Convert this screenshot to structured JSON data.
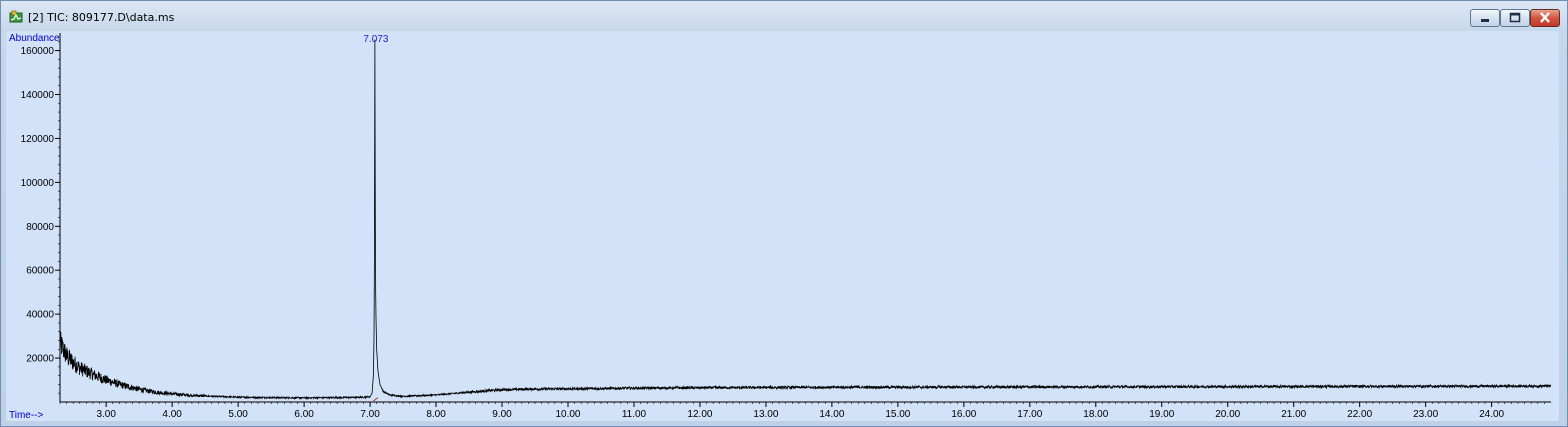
{
  "window": {
    "title": "[2] TIC: 809177.D\\data.ms"
  },
  "icons": {
    "app": "chromatogram-app-icon",
    "minimize": "minimize-icon",
    "maximize": "maximize-icon",
    "close": "close-icon"
  },
  "colors": {
    "plot_background": "#d2e2f8",
    "trace": "#000000",
    "axis_text": "#0000d0",
    "peak_label": "#2222cc",
    "baseline_marker": "#cc2222"
  },
  "chart_data": {
    "type": "line",
    "xlabel": "Time-->",
    "ylabel": "Abundance",
    "xlim": [
      2.3,
      24.9
    ],
    "ylim": [
      0,
      168000
    ],
    "x_ticks": [
      3.0,
      4.0,
      5.0,
      6.0,
      7.0,
      8.0,
      9.0,
      10.0,
      11.0,
      12.0,
      13.0,
      14.0,
      15.0,
      16.0,
      17.0,
      18.0,
      19.0,
      20.0,
      21.0,
      22.0,
      23.0,
      24.0
    ],
    "x_tick_labels": [
      "3.00",
      "4.00",
      "5.00",
      "6.00",
      "7.00",
      "8.00",
      "9.00",
      "10.00",
      "11.00",
      "12.00",
      "13.00",
      "14.00",
      "15.00",
      "16.00",
      "17.00",
      "18.00",
      "19.00",
      "20.00",
      "21.00",
      "22.00",
      "23.00",
      "24.00"
    ],
    "y_ticks": [
      20000,
      40000,
      60000,
      80000,
      100000,
      120000,
      140000,
      160000
    ],
    "y_tick_labels": [
      "20000",
      "40000",
      "60000",
      "80000",
      "100000",
      "120000",
      "140000",
      "160000"
    ],
    "peaks": [
      {
        "label": "7.073",
        "x": 7.073,
        "y": 165000
      }
    ],
    "series": [
      {
        "x": [
          2.3,
          2.4,
          2.5,
          2.6,
          2.8,
          3.0,
          3.2,
          3.4,
          3.6,
          3.8,
          4.0,
          4.3,
          4.6,
          5.0,
          5.5,
          6.0,
          6.5,
          6.9,
          7.0,
          7.03,
          7.05,
          7.06,
          7.065,
          7.07,
          7.073,
          7.076,
          7.08,
          7.085,
          7.09,
          7.1,
          7.12,
          7.15,
          7.2,
          7.3,
          7.5,
          8.0,
          8.5,
          9.0,
          9.5,
          10.0,
          11.0,
          12.0,
          14.0,
          16.0,
          18.0,
          20.0,
          22.0,
          24.0,
          24.9
        ],
        "y": [
          27000,
          21000,
          18000,
          15500,
          12500,
          10000,
          8000,
          6500,
          5200,
          4300,
          3700,
          3000,
          2600,
          2200,
          2000,
          1900,
          2000,
          2200,
          2400,
          4000,
          12000,
          30000,
          60000,
          120000,
          165000,
          125000,
          80000,
          50000,
          38000,
          24000,
          14000,
          8000,
          4800,
          3200,
          2600,
          3200,
          4500,
          5600,
          5900,
          6000,
          6300,
          6500,
          6700,
          6800,
          6900,
          7000,
          7100,
          7200,
          7300
        ]
      }
    ]
  }
}
